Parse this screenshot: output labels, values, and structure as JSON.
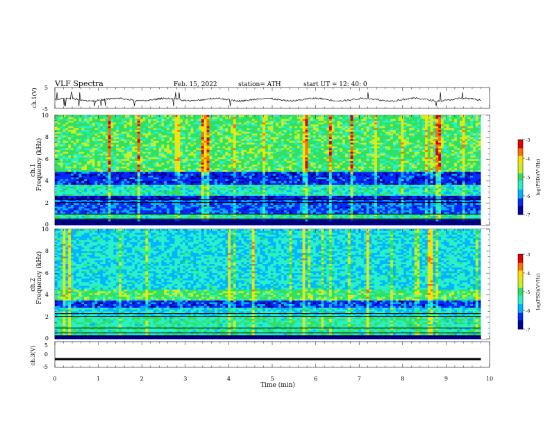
{
  "header": {
    "title": "VLF  Spectra",
    "date": "Feb. 15, 2022",
    "station": "station= ATH",
    "start": "start  UT  =   12: 40: 0"
  },
  "chart_data": [
    {
      "type": "line",
      "name": "ch1-waveform",
      "ylabel": "ch.1(V)",
      "ylim": [
        -5,
        5
      ],
      "yticks": [
        "5",
        "-5"
      ],
      "xlim": [
        0,
        10
      ],
      "baseline": -0.8,
      "color": "#000000"
    },
    {
      "type": "heatmap",
      "name": "ch1-spectrogram",
      "ylabel": "Frequency  (kHz)",
      "ylabel2": "ch.1",
      "ylim": [
        0,
        10
      ],
      "yticks": [
        "0",
        "2",
        "4",
        "6",
        "8",
        "10"
      ],
      "xlim": [
        0,
        9.8
      ],
      "background_bands_kHz": [
        {
          "from": 0,
          "to": 0.5,
          "level": -7
        },
        {
          "from": 0.5,
          "to": 1.0,
          "level": -5.3
        },
        {
          "from": 1.0,
          "to": 2.3,
          "level": -6.2
        },
        {
          "from": 2.3,
          "to": 2.6,
          "level": -6.6
        },
        {
          "from": 2.6,
          "to": 3.7,
          "level": -5.4
        },
        {
          "from": 3.7,
          "to": 4.8,
          "level": -6.4
        },
        {
          "from": 4.8,
          "to": 10,
          "level": -5.0
        }
      ]
    },
    {
      "type": "heatmap",
      "name": "ch2-spectrogram",
      "ylabel": "Frequency  (kHz)",
      "ylabel2": "ch.2",
      "ylim": [
        0,
        10
      ],
      "yticks": [
        "0",
        "2",
        "4",
        "6",
        "8",
        "10"
      ],
      "xlim": [
        0,
        9.8
      ],
      "background_bands_kHz": [
        {
          "from": 0,
          "to": 0.3,
          "level": -7
        },
        {
          "from": 0.3,
          "to": 2.0,
          "level": -5.3
        },
        {
          "from": 2.0,
          "to": 2.8,
          "level": -5.6
        },
        {
          "from": 2.8,
          "to": 3.5,
          "level": -6.3
        },
        {
          "from": 3.5,
          "to": 4.5,
          "level": -5.0
        },
        {
          "from": 4.5,
          "to": 10,
          "level": -5.6
        }
      ]
    },
    {
      "type": "line",
      "name": "ch3-waveform",
      "ylabel": "ch.3(V)",
      "ylim": [
        -5,
        5
      ],
      "yticks": [
        "5",
        "0",
        "-5"
      ],
      "xlim": [
        0,
        10
      ],
      "baseline": -1.8,
      "color": "#000000",
      "xlabel": "Time  (min)",
      "xticks": [
        "0",
        "1",
        "2",
        "3",
        "4",
        "5",
        "6",
        "7",
        "8",
        "9",
        "10"
      ]
    }
  ],
  "colorbar": {
    "label": "log(PSD)(V²/Hz)",
    "ticks": [
      "-3",
      "-4",
      "-5",
      "-6",
      "-7"
    ],
    "range": [
      -7,
      -3
    ],
    "colors": [
      "#000000",
      "#0000a0",
      "#0028ff",
      "#00b4ff",
      "#2af0c8",
      "#30e060",
      "#c8f028",
      "#ffe000",
      "#ff7000",
      "#e00000",
      "#ffffff"
    ]
  }
}
